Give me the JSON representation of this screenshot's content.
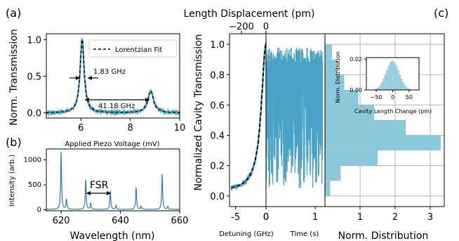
{
  "panel_labels": {
    "a": "(a)",
    "b": "(b)",
    "c": "(c)"
  },
  "colors": {
    "data": "#4aa3c6",
    "line": "#2b7bb9",
    "fit": "#000000",
    "hist": "#8cc7dc"
  },
  "chart_data": [
    {
      "type": "line",
      "xlabel": "Applied Piezo Voltage (mV)",
      "ylabel": "Norm. Transmission",
      "xlim": [
        4.6,
        10
      ],
      "ylim": [
        -0.07,
        1.08
      ],
      "xticks": [
        "6",
        "8",
        "10"
      ],
      "yticks": [
        "0.0",
        "0.5",
        "1.0"
      ],
      "legend": {
        "entry": "Lorentzian Fit",
        "placement": "top-right"
      },
      "annotations": {
        "linewidth": "1.83 GHz",
        "fsr": "41.18 GHz"
      },
      "series": [
        {
          "name": "Lorentzian Fit",
          "peaks": [
            {
              "x": 6.05,
              "height": 1.0,
              "width": 0.1
            },
            {
              "x": 8.83,
              "height": 0.3,
              "width": 0.14
            }
          ]
        }
      ]
    },
    {
      "type": "line",
      "xlabel": "Wavelength (nm)",
      "ylabel": "Intensity (arb.)",
      "xlim": [
        615,
        660
      ],
      "ylim": [
        -20,
        1220
      ],
      "xticks": [
        "620",
        "640",
        "660"
      ],
      "yticks": [
        "0",
        "500",
        "1000"
      ],
      "annotations": {
        "fsr": "FSR"
      },
      "peaks": [
        {
          "x": 620,
          "y": 1150
        },
        {
          "x": 621.8,
          "y": 200
        },
        {
          "x": 628.3,
          "y": 590
        },
        {
          "x": 630,
          "y": 120
        },
        {
          "x": 636.6,
          "y": 370
        },
        {
          "x": 638.5,
          "y": 80
        },
        {
          "x": 645.3,
          "y": 440
        },
        {
          "x": 647,
          "y": 60
        },
        {
          "x": 654.1,
          "y": 710
        },
        {
          "x": 656,
          "y": 60
        }
      ]
    },
    {
      "type": "line",
      "title": "Length Displacement (pm)",
      "xlabel": "Detuning (GHz)",
      "ylabel": "Normalized Cavity Transmission",
      "xlim": [
        -6,
        0
      ],
      "ylim": [
        -0.07,
        1.07
      ],
      "xticks": [
        "-5",
        "0"
      ],
      "yticks": [
        "0.0",
        "0.2",
        "0.4",
        "0.6",
        "0.8",
        "1.0"
      ],
      "top_ticks": [
        "−200",
        "0"
      ],
      "series": [
        {
          "name": "Lorentzian Fit",
          "center": 0,
          "hwhm": 0.92,
          "offset": 0.03
        }
      ]
    },
    {
      "type": "line",
      "xlabel": "Time (s)",
      "xlim": [
        0,
        1.2
      ],
      "ylim": [
        -0.07,
        1.07
      ],
      "xticks": [
        "0",
        "1"
      ],
      "band": {
        "min": 0.05,
        "max": 0.98
      }
    },
    {
      "type": "bar",
      "orientation": "horizontal",
      "xlabel": "Norm. Distribution",
      "xlim": [
        0,
        3.4
      ],
      "ylim": [
        -0.07,
        1.07
      ],
      "xticks": [
        "1",
        "2",
        "3"
      ],
      "bins": [
        {
          "y": 0.05,
          "value": 0.15
        },
        {
          "y": 0.15,
          "value": 0.45
        },
        {
          "y": 0.25,
          "value": 1.5
        },
        {
          "y": 0.35,
          "value": 3.3
        },
        {
          "y": 0.45,
          "value": 2.3
        },
        {
          "y": 0.55,
          "value": 1.4
        },
        {
          "y": 0.65,
          "value": 0.95
        },
        {
          "y": 0.75,
          "value": 0.55
        },
        {
          "y": 0.85,
          "value": 0.35
        },
        {
          "y": 0.95,
          "value": 0.2
        }
      ]
    },
    {
      "type": "bar",
      "xlabel": "Cavity Length Change (pm)",
      "ylabel": "Norm. Distribution",
      "xlim": [
        -80,
        80
      ],
      "ylim": [
        0,
        0.021
      ],
      "xticks": [
        "−50",
        "0",
        "50"
      ],
      "yticks": [
        "0.00",
        "0.02"
      ],
      "distribution": {
        "mean": 0,
        "std": 20,
        "peak": 0.019
      }
    }
  ]
}
